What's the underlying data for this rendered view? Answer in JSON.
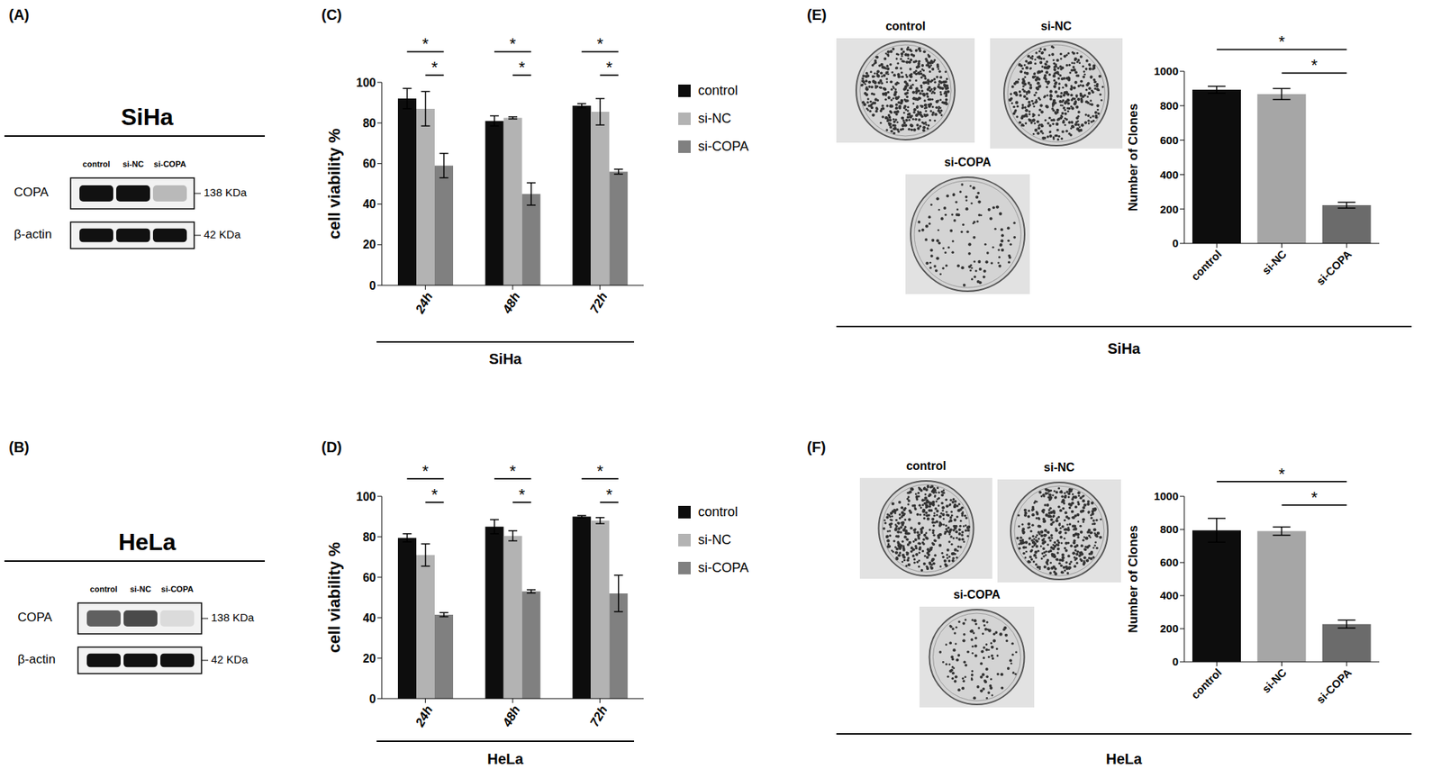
{
  "blots": [
    {
      "panel": "(A)",
      "title": "SiHa",
      "lanes": [
        "control",
        "si-NC",
        "si-COPA"
      ],
      "rows": [
        {
          "protein": "COPA",
          "size": "138 KDa",
          "intensity": [
            1,
            1,
            0.25
          ]
        },
        {
          "protein": "β-actin",
          "size": "42 KDa",
          "intensity": [
            1,
            1,
            1
          ]
        }
      ]
    },
    {
      "panel": "(B)",
      "title": "HeLa",
      "lanes": [
        "control",
        "si-NC",
        "si-COPA"
      ],
      "rows": [
        {
          "protein": "COPA",
          "size": "138 KDa",
          "intensity": [
            0.65,
            0.75,
            0.1
          ]
        },
        {
          "protein": "β-actin",
          "size": "42 KDa",
          "intensity": [
            1,
            1,
            1
          ]
        }
      ]
    }
  ],
  "chart_data": [
    {
      "panel": "(C)",
      "type": "bar",
      "group_label": "SiHa",
      "y_label": "cell viability %",
      "categories": [
        "24h",
        "48h",
        "72h"
      ],
      "series": [
        {
          "name": "control",
          "color": "#0d0d0d",
          "values": [
            92,
            81,
            88.5
          ],
          "errors": [
            5,
            2.5,
            1
          ]
        },
        {
          "name": "si-NC",
          "color": "#b3b3b3",
          "values": [
            87,
            82.5,
            85.5
          ],
          "errors": [
            8.5,
            0.5,
            6.5
          ]
        },
        {
          "name": "si-COPA",
          "color": "#808080",
          "values": [
            59,
            45,
            56
          ],
          "errors": [
            6,
            5.5,
            1.2
          ]
        }
      ],
      "ylim": [
        0,
        100
      ],
      "yticks": [
        0,
        20,
        40,
        60,
        80,
        100
      ],
      "legend": "right",
      "significance": [
        {
          "category": "24h",
          "from": "control",
          "to": "si-COPA",
          "label": "*"
        },
        {
          "category": "24h",
          "from": "si-NC",
          "to": "si-COPA",
          "label": "*"
        },
        {
          "category": "48h",
          "from": "control",
          "to": "si-COPA",
          "label": "*"
        },
        {
          "category": "48h",
          "from": "si-NC",
          "to": "si-COPA",
          "label": "*"
        },
        {
          "category": "72h",
          "from": "control",
          "to": "si-COPA",
          "label": "*"
        },
        {
          "category": "72h",
          "from": "si-NC",
          "to": "si-COPA",
          "label": "*"
        }
      ]
    },
    {
      "panel": "(D)",
      "type": "bar",
      "group_label": "HeLa",
      "y_label": "cell viability %",
      "categories": [
        "24h",
        "48h",
        "72h"
      ],
      "series": [
        {
          "name": "control",
          "color": "#0d0d0d",
          "values": [
            79.5,
            85,
            90
          ],
          "errors": [
            2,
            3.5,
            0.5
          ]
        },
        {
          "name": "si-NC",
          "color": "#b3b3b3",
          "values": [
            71,
            80.5,
            88
          ],
          "errors": [
            5.5,
            2.5,
            1.5
          ]
        },
        {
          "name": "si-COPA",
          "color": "#808080",
          "values": [
            41.5,
            53,
            52
          ],
          "errors": [
            1,
            0.8,
            9
          ]
        }
      ],
      "ylim": [
        0,
        100
      ],
      "yticks": [
        0,
        20,
        40,
        60,
        80,
        100
      ],
      "legend": "right",
      "significance": [
        {
          "category": "24h",
          "from": "control",
          "to": "si-COPA",
          "label": "*"
        },
        {
          "category": "24h",
          "from": "si-NC",
          "to": "si-COPA",
          "label": "*"
        },
        {
          "category": "48h",
          "from": "control",
          "to": "si-COPA",
          "label": "*"
        },
        {
          "category": "48h",
          "from": "si-NC",
          "to": "si-COPA",
          "label": "*"
        },
        {
          "category": "72h",
          "from": "control",
          "to": "si-COPA",
          "label": "*"
        },
        {
          "category": "72h",
          "from": "si-NC",
          "to": "si-COPA",
          "label": "*"
        }
      ]
    },
    {
      "panel": "(E)",
      "type": "bar",
      "group_label": "SiHa",
      "y_label": "Number of Clones",
      "categories": [
        "control",
        "si-NC",
        "si-COPA"
      ],
      "values": [
        893,
        868,
        222
      ],
      "errors": [
        20,
        32,
        17
      ],
      "colors": [
        "#0d0d0d",
        "#a6a6a6",
        "#6b6b6b"
      ],
      "ylim": [
        0,
        1000
      ],
      "yticks": [
        0,
        200,
        400,
        600,
        800,
        1000
      ],
      "plates": [
        "control",
        "si-NC",
        "si-COPA"
      ],
      "significance": [
        {
          "from": "control",
          "to": "si-COPA",
          "label": "*"
        },
        {
          "from": "si-NC",
          "to": "si-COPA",
          "label": "*"
        }
      ]
    },
    {
      "panel": "(F)",
      "type": "bar",
      "group_label": "HeLa",
      "y_label": "Number of Clones",
      "categories": [
        "control",
        "si-NC",
        "si-COPA"
      ],
      "values": [
        795,
        790,
        228
      ],
      "errors": [
        72,
        25,
        24
      ],
      "colors": [
        "#0d0d0d",
        "#a6a6a6",
        "#6b6b6b"
      ],
      "ylim": [
        0,
        1000
      ],
      "yticks": [
        0,
        200,
        400,
        600,
        800,
        1000
      ],
      "plates": [
        "control",
        "si-NC",
        "si-COPA"
      ],
      "significance": [
        {
          "from": "control",
          "to": "si-COPA",
          "label": "*"
        },
        {
          "from": "si-NC",
          "to": "si-COPA",
          "label": "*"
        }
      ]
    }
  ]
}
